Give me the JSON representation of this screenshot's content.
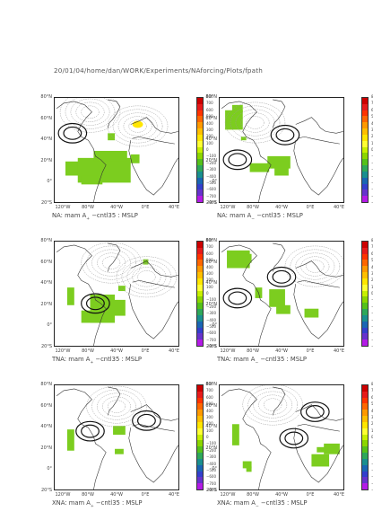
{
  "header": "20/01/04/home/dan/WORK/Experiments/NAforcing/Plots/fpath",
  "lat_labels": [
    "80°N",
    "60°N",
    "40°N",
    "20°N",
    "0°",
    "20°S"
  ],
  "lon_labels": [
    "120°W",
    "80°W",
    "40°W",
    "0°E",
    "40°E"
  ],
  "colorbar": {
    "ticks": [
      "800",
      "700",
      "600",
      "500",
      "400",
      "300",
      "200",
      "100",
      "0",
      "−100",
      "−200",
      "−300",
      "−400",
      "−500",
      "−600",
      "−700",
      "−800"
    ],
    "colors": [
      "#cc0000",
      "#e61a1a",
      "#ff3300",
      "#ff6600",
      "#ff9900",
      "#ffbf00",
      "#ffe600",
      "#ffff33",
      "#c8f000",
      "#8cd600",
      "#55c11a",
      "#2ea85a",
      "#1a8f8f",
      "#1a66b3",
      "#3340cc",
      "#6633cc",
      "#b31ae6"
    ]
  },
  "panels": [
    {
      "caption_pre": "NA: mam A",
      "caption_sub": "+",
      "caption_post": " −cntl35 : MSLP"
    },
    {
      "caption_pre": "NA: mam A",
      "caption_sub": "−",
      "caption_post": " −cntl35 : MSLP"
    },
    {
      "caption_pre": "TNA: mam A",
      "caption_sub": "+",
      "caption_post": " −cntl35 : MSLP"
    },
    {
      "caption_pre": "TNA: mam A",
      "caption_sub": "−",
      "caption_post": " −cntl35 : MSLP"
    },
    {
      "caption_pre": "XNA: mam A",
      "caption_sub": "+",
      "caption_post": " −cntl35 : MSLP"
    },
    {
      "caption_pre": "XNA: mam A",
      "caption_sub": "−",
      "caption_post": " −cntl35 : MSLP"
    }
  ]
}
